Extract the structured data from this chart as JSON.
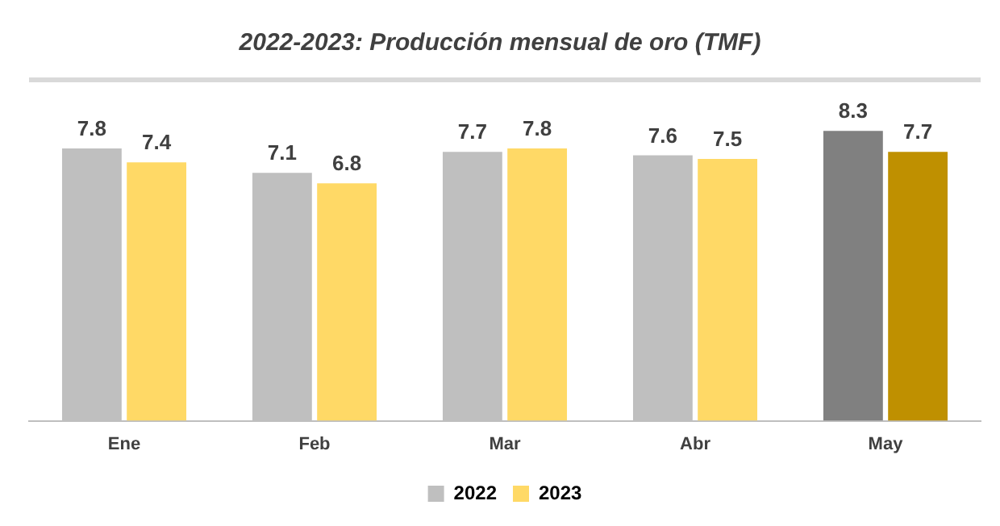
{
  "chart_data": {
    "type": "bar",
    "title": "2022-2023: Producción mensual de oro (TMF)",
    "categories": [
      "Ene",
      "Feb",
      "Mar",
      "Abr",
      "May"
    ],
    "series": [
      {
        "name": "2022",
        "color": "#bfbfbf",
        "values": [
          7.8,
          7.1,
          7.7,
          7.6,
          8.3
        ],
        "colors": [
          "#bfbfbf",
          "#bfbfbf",
          "#bfbfbf",
          "#bfbfbf",
          "#808080"
        ]
      },
      {
        "name": "2023",
        "color": "#ffd966",
        "values": [
          7.4,
          6.8,
          7.8,
          7.5,
          7.7
        ],
        "colors": [
          "#ffd966",
          "#ffd966",
          "#ffd966",
          "#ffd966",
          "#bf9000"
        ]
      }
    ],
    "data_labels": true,
    "legend": "bottom",
    "grid": false
  }
}
